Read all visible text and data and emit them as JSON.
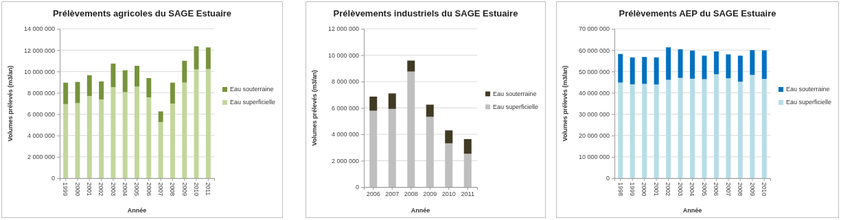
{
  "chart_data": [
    {
      "type": "bar",
      "stacked": true,
      "title": "Prélèvements agricoles du SAGE Estuaire",
      "xlabel": "Année",
      "ylabel": "Volumes prélevés (m3/an)",
      "categories": [
        "1999",
        "2000",
        "2001",
        "2002",
        "2003",
        "2004",
        "2005",
        "2006",
        "2007",
        "2008",
        "2009",
        "2010",
        "2011"
      ],
      "series": [
        {
          "name": "Eau superficielle",
          "color": "#c3d69b",
          "values": [
            6950000,
            7040000,
            7700000,
            7370000,
            8540000,
            8060000,
            8580000,
            7580000,
            5260000,
            7000000,
            8960000,
            10190000,
            10230000
          ]
        },
        {
          "name": "Eau souterraine",
          "color": "#77933c",
          "values": [
            2000000,
            1980000,
            1950000,
            1700000,
            2200000,
            2050000,
            1950000,
            1800000,
            1000000,
            1950000,
            2040000,
            2170000,
            2020000
          ]
        }
      ],
      "ylim": [
        0,
        14000000
      ],
      "yticks": [
        {
          "value": 0,
          "label": "0"
        },
        {
          "value": 2000000,
          "label": "2 000 000"
        },
        {
          "value": 4000000,
          "label": "4 000 000"
        },
        {
          "value": 6000000,
          "label": "6 000 000"
        },
        {
          "value": 8000000,
          "label": "8 000 000"
        },
        {
          "value": 10000000,
          "label": "10 000 000"
        },
        {
          "value": 12000000,
          "label": "12 000 000"
        },
        {
          "value": 14000000,
          "label": "14 000 000"
        }
      ],
      "grid": "y",
      "legend": "right"
    },
    {
      "type": "bar",
      "stacked": true,
      "title": "Prélèvements industriels du SAGE Estuaire",
      "xlabel": "Année",
      "ylabel": "Volumes prélevés (m3/an)",
      "categories": [
        "2006",
        "2007",
        "2008",
        "2009",
        "2010",
        "2011"
      ],
      "series": [
        {
          "name": "Eau superficielle",
          "color": "#bfbfbf",
          "values": [
            5790000,
            5930000,
            8760000,
            5330000,
            3320000,
            2530000
          ]
        },
        {
          "name": "Eau souterraine",
          "color": "#403a24",
          "values": [
            1070000,
            1170000,
            830000,
            920000,
            980000,
            1110000
          ]
        }
      ],
      "ylim": [
        0,
        12000000
      ],
      "yticks": [
        {
          "value": 0,
          "label": "0"
        },
        {
          "value": 2000000,
          "label": "2 000 000"
        },
        {
          "value": 4000000,
          "label": "4 000 000"
        },
        {
          "value": 6000000,
          "label": "6 000 000"
        },
        {
          "value": 8000000,
          "label": "8 000 000"
        },
        {
          "value": 10000000,
          "label": "10 000 000"
        },
        {
          "value": 12000000,
          "label": "12 000 000"
        }
      ],
      "grid": "y",
      "legend": "right"
    },
    {
      "type": "bar",
      "stacked": true,
      "title": "Prélèvements AEP du SAGE Estuaire",
      "xlabel": "Année",
      "ylabel": "Volumes prélevés (m3/an)",
      "categories": [
        "1998",
        "1999",
        "2000",
        "2001",
        "2002",
        "2003",
        "2004",
        "2005",
        "2006",
        "2007",
        "2008",
        "2009",
        "2010"
      ],
      "series": [
        {
          "name": "Eau superficielle",
          "color": "#b7dde8",
          "values": [
            44800000,
            44000000,
            44200000,
            43900000,
            46100000,
            47000000,
            46600000,
            46400000,
            48700000,
            46800000,
            45200000,
            48400000,
            46500000
          ]
        },
        {
          "name": "Eau souterraine",
          "color": "#0070c0",
          "values": [
            13400000,
            12600000,
            12600000,
            12700000,
            15200000,
            13400000,
            13200000,
            11000000,
            10700000,
            11200000,
            12200000,
            11600000,
            13400000
          ]
        }
      ],
      "ylim": [
        0,
        70000000
      ],
      "yticks": [
        {
          "value": 0,
          "label": "0"
        },
        {
          "value": 10000000,
          "label": "10 000 000"
        },
        {
          "value": 20000000,
          "label": "20 000 000"
        },
        {
          "value": 30000000,
          "label": "30 000 000"
        },
        {
          "value": 40000000,
          "label": "40 000 000"
        },
        {
          "value": 50000000,
          "label": "50 000 000"
        },
        {
          "value": 60000000,
          "label": "60 000 000"
        },
        {
          "value": 70000000,
          "label": "70 000 000"
        }
      ],
      "grid": "y",
      "legend": "right"
    }
  ]
}
